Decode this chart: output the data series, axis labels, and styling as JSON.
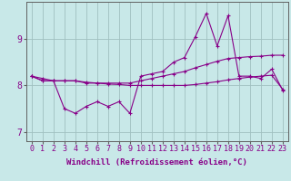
{
  "title": "",
  "xlabel": "Windchill (Refroidissement éolien,°C)",
  "ylabel": "",
  "bg_color": "#c8e8e8",
  "grid_color": "#a0c0c0",
  "line_color": "#880088",
  "xlim": [
    -0.5,
    23.5
  ],
  "ylim": [
    6.8,
    9.8
  ],
  "xticks": [
    0,
    1,
    2,
    3,
    4,
    5,
    6,
    7,
    8,
    9,
    10,
    11,
    12,
    13,
    14,
    15,
    16,
    17,
    18,
    19,
    20,
    21,
    22,
    23
  ],
  "yticks": [
    7,
    8,
    9
  ],
  "series1_x": [
    0,
    1,
    2,
    3,
    4,
    5,
    6,
    7,
    8,
    9,
    10,
    11,
    12,
    13,
    14,
    15,
    16,
    17,
    18,
    19,
    20,
    21,
    22,
    23
  ],
  "series1_y": [
    8.2,
    8.1,
    8.1,
    7.5,
    7.4,
    7.55,
    7.65,
    7.55,
    7.65,
    7.4,
    8.2,
    8.25,
    8.3,
    8.5,
    8.6,
    9.05,
    9.55,
    8.85,
    9.5,
    8.2,
    8.2,
    8.15,
    8.35,
    7.9
  ],
  "series2_x": [
    0,
    1,
    2,
    3,
    4,
    5,
    6,
    7,
    8,
    9,
    10,
    11,
    12,
    13,
    14,
    15,
    16,
    17,
    18,
    19,
    20,
    21,
    22,
    23
  ],
  "series2_y": [
    8.2,
    8.15,
    8.1,
    8.1,
    8.1,
    8.05,
    8.05,
    8.05,
    8.05,
    8.05,
    8.1,
    8.15,
    8.2,
    8.25,
    8.3,
    8.38,
    8.45,
    8.52,
    8.58,
    8.6,
    8.62,
    8.63,
    8.65,
    8.65
  ],
  "series3_x": [
    0,
    1,
    2,
    3,
    4,
    5,
    6,
    7,
    8,
    9,
    10,
    11,
    12,
    13,
    14,
    15,
    16,
    17,
    18,
    19,
    20,
    21,
    22,
    23
  ],
  "series3_y": [
    8.2,
    8.1,
    8.1,
    8.1,
    8.1,
    8.07,
    8.05,
    8.03,
    8.02,
    8.0,
    8.0,
    8.0,
    8.0,
    8.0,
    8.0,
    8.02,
    8.05,
    8.08,
    8.12,
    8.15,
    8.18,
    8.2,
    8.22,
    7.92
  ],
  "tick_fontsize": 6,
  "xlabel_fontsize": 6.5
}
